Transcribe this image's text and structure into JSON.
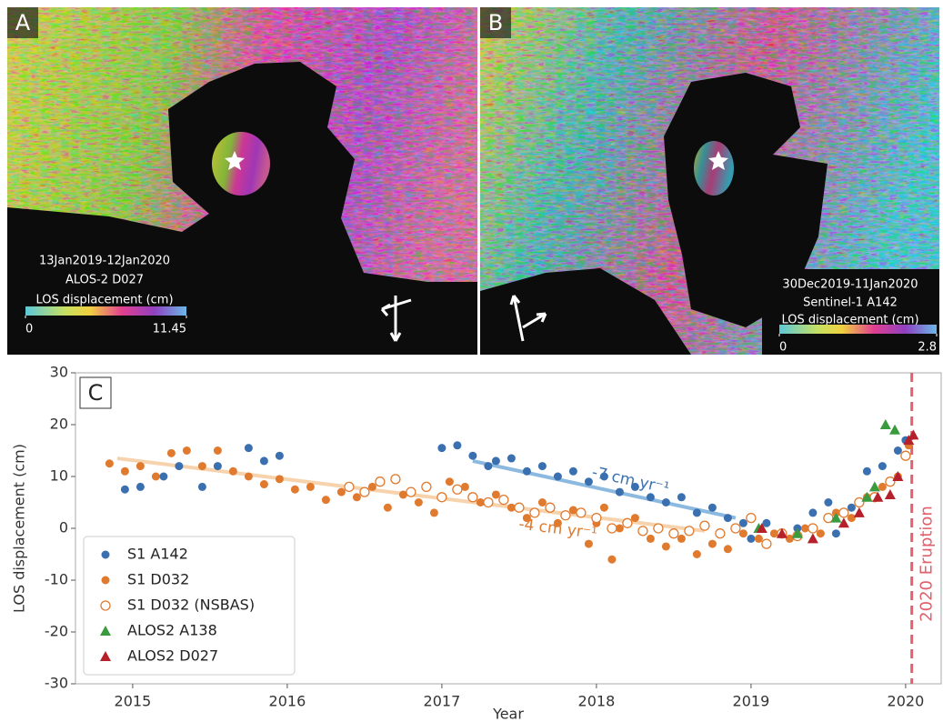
{
  "panels": [
    {
      "label": "A",
      "date_range": "13Jan2019-12Jan2020",
      "sensor": "ALOS-2 D027",
      "colorbar_label": "LOS displacement (cm)",
      "colorbar_min": 0,
      "colorbar_max": 11.45
    },
    {
      "label": "B",
      "date_range": "30Dec2019-11Jan2020",
      "sensor": "Sentinel-1 A142",
      "colorbar_label": "LOS displacement (cm)",
      "colorbar_min": 0,
      "colorbar_max": 2.8
    }
  ],
  "chart_data": {
    "type": "scatter",
    "panel_label": "C",
    "xlabel": "Year",
    "ylabel": "LOS displacement (cm)",
    "xlim": [
      2014.63,
      2020.23
    ],
    "ylim": [
      -30,
      30
    ],
    "xticks": [
      2015,
      2016,
      2017,
      2018,
      2019,
      2020
    ],
    "yticks": [
      -30,
      -20,
      -10,
      0,
      10,
      20,
      30
    ],
    "legend": "lower left",
    "series": [
      {
        "name": "S1 A142",
        "color": "#3b70b0",
        "marker": "circle",
        "x": [
          2014.95,
          2015.05,
          2015.2,
          2015.3,
          2015.45,
          2015.55,
          2015.75,
          2015.85,
          2015.95,
          2017.0,
          2017.1,
          2017.2,
          2017.3,
          2017.35,
          2017.45,
          2017.55,
          2017.65,
          2017.75,
          2017.85,
          2017.95,
          2018.05,
          2018.15,
          2018.25,
          2018.35,
          2018.45,
          2018.55,
          2018.65,
          2018.75,
          2018.85,
          2018.95,
          2019.0,
          2019.1,
          2019.2,
          2019.3,
          2019.4,
          2019.5,
          2019.55,
          2019.65,
          2019.75,
          2019.85,
          2019.95,
          2020.0
        ],
        "values": [
          7.5,
          8,
          10,
          12,
          8,
          12,
          15.5,
          13,
          14,
          15.5,
          16,
          14,
          12,
          13,
          13.5,
          11,
          12,
          10,
          11,
          9,
          10,
          7,
          8,
          6,
          5,
          6,
          3,
          4,
          2,
          1,
          -2,
          1,
          -1,
          0,
          3,
          5,
          -1,
          4,
          11,
          12,
          15,
          17
        ]
      },
      {
        "name": "S1 D032",
        "color": "#e07a2e",
        "marker": "circle",
        "x": [
          2014.85,
          2014.95,
          2015.05,
          2015.15,
          2015.25,
          2015.35,
          2015.45,
          2015.55,
          2015.65,
          2015.75,
          2015.85,
          2015.95,
          2016.05,
          2016.15,
          2016.25,
          2016.35,
          2016.45,
          2016.55,
          2016.65,
          2016.75,
          2016.85,
          2016.95,
          2017.05,
          2017.15,
          2017.25,
          2017.35,
          2017.45,
          2017.55,
          2017.65,
          2017.75,
          2017.85,
          2017.95,
          2018.0,
          2018.05,
          2018.1,
          2018.15,
          2018.25,
          2018.35,
          2018.45,
          2018.55,
          2018.65,
          2018.75,
          2018.85,
          2018.95,
          2019.05,
          2019.15,
          2019.25,
          2019.35,
          2019.45,
          2019.55,
          2019.65,
          2019.75,
          2019.85,
          2019.95,
          2020.02
        ],
        "values": [
          12.5,
          11,
          12,
          10,
          14.5,
          15,
          12,
          15,
          11,
          10,
          8.5,
          9.5,
          7.5,
          8,
          5.5,
          7,
          6,
          8,
          4,
          6.5,
          5,
          3,
          9,
          8,
          5,
          6.5,
          4,
          2,
          5,
          1,
          3.5,
          -3,
          1,
          4,
          -6,
          0,
          2,
          -2,
          -3.5,
          -2,
          -5,
          -3,
          -4,
          -1,
          -2,
          -1,
          -2,
          0,
          -1,
          3,
          2,
          6,
          8,
          10,
          16
        ]
      },
      {
        "name": "S1 D032 (NSBAS)",
        "color": "#e07a2e",
        "marker": "circle-open",
        "x": [
          2016.4,
          2016.5,
          2016.6,
          2016.7,
          2016.8,
          2016.9,
          2017.0,
          2017.1,
          2017.2,
          2017.3,
          2017.4,
          2017.5,
          2017.6,
          2017.7,
          2017.8,
          2017.9,
          2018.0,
          2018.1,
          2018.2,
          2018.3,
          2018.4,
          2018.5,
          2018.6,
          2018.7,
          2018.8,
          2018.9,
          2019.0,
          2019.1,
          2019.2,
          2019.3,
          2019.4,
          2019.5,
          2019.6,
          2019.7,
          2019.8,
          2019.9,
          2020.0
        ],
        "values": [
          8,
          7,
          9,
          9.5,
          7,
          8,
          6,
          7.5,
          6,
          5,
          5.5,
          4,
          3,
          4,
          2.5,
          3,
          2,
          0,
          1,
          -0.5,
          0,
          -1,
          -0.5,
          0.5,
          -1,
          0,
          2,
          -3,
          -1,
          -1.5,
          0,
          2,
          3,
          5,
          6,
          9,
          14
        ]
      },
      {
        "name": "ALOS2 A138",
        "color": "#3a9a3e",
        "marker": "triangle",
        "x": [
          2019.05,
          2019.3,
          2019.55,
          2019.75,
          2019.8,
          2019.87,
          2019.93
        ],
        "values": [
          0,
          -1,
          2,
          6,
          8,
          20,
          19
        ]
      },
      {
        "name": "ALOS2 D027",
        "color": "#b5202a",
        "marker": "triangle",
        "x": [
          2019.07,
          2019.2,
          2019.4,
          2019.6,
          2019.7,
          2019.82,
          2019.9,
          2019.95,
          2020.02,
          2020.05
        ],
        "values": [
          0,
          -1,
          -2,
          1,
          3,
          6,
          6.5,
          10,
          17,
          18
        ]
      }
    ],
    "trend_lines": [
      {
        "label": "-7 cm yr⁻¹",
        "color": "#7fb2dc",
        "x": [
          2017.2,
          2018.9
        ],
        "values": [
          13,
          2
        ]
      },
      {
        "label": "-4 cm yr⁻¹",
        "color": "#f6cfa4",
        "x": [
          2014.9,
          2018.7
        ],
        "values": [
          13.5,
          -0.5
        ]
      }
    ],
    "event": {
      "label": "2020 Eruption",
      "x": 2020.04,
      "color": "#e0606c"
    }
  }
}
